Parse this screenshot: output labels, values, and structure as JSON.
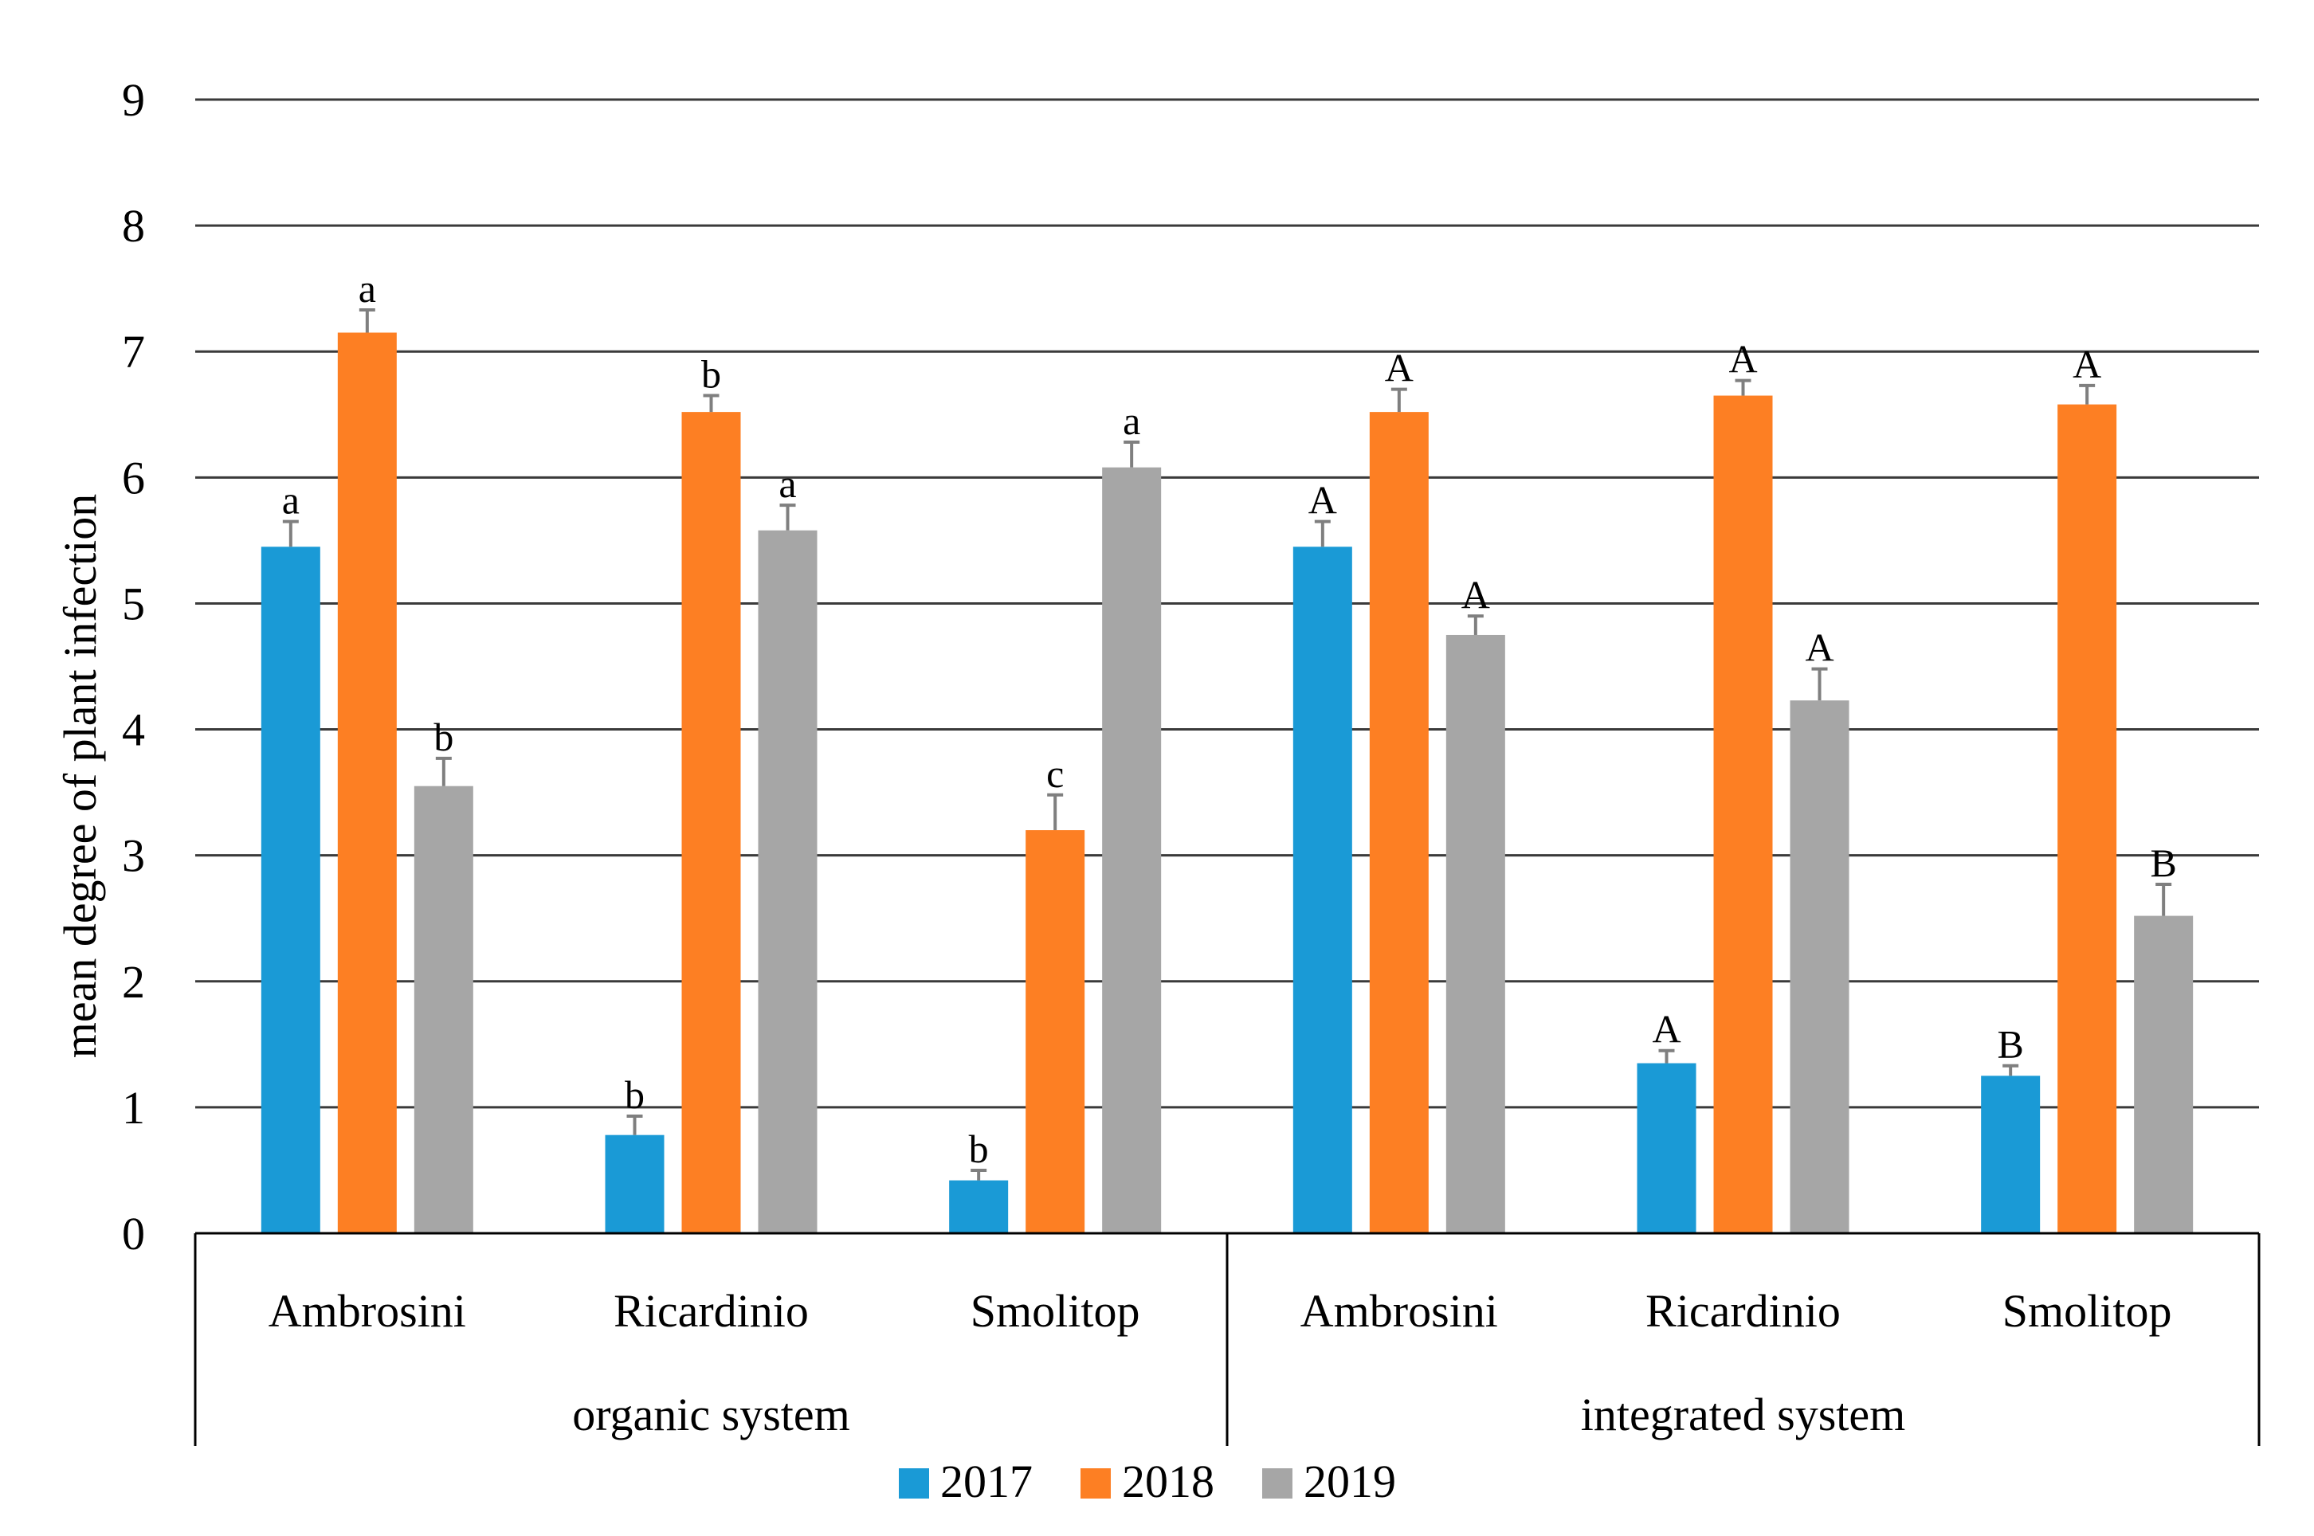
{
  "chart_data": {
    "type": "bar",
    "title": "",
    "xlabel": "",
    "ylabel": "mean degree of plant infection",
    "ylim": [
      0,
      9
    ],
    "yticks": [
      0,
      1,
      2,
      3,
      4,
      5,
      6,
      7,
      8,
      9
    ],
    "grid": true,
    "legend_position": "bottom",
    "groups": [
      {
        "name": "organic system",
        "categories": [
          "Ambrosini",
          "Ricardinio",
          "Smolitop"
        ]
      },
      {
        "name": "integrated system",
        "categories": [
          "Ambrosini",
          "Ricardinio",
          "Smolitop"
        ]
      }
    ],
    "categories": [
      "Ambrosini",
      "Ricardinio",
      "Smolitop",
      "Ambrosini",
      "Ricardinio",
      "Smolitop"
    ],
    "series": [
      {
        "name": "2017",
        "color": "#1a9ad6",
        "values": [
          5.45,
          0.78,
          0.42,
          5.45,
          1.35,
          1.25
        ],
        "errors": [
          0.2,
          0.15,
          0.08,
          0.2,
          0.1,
          0.08
        ],
        "letters": [
          "a",
          "b",
          "b",
          "A",
          "A",
          "B"
        ]
      },
      {
        "name": "2018",
        "color": "#fd7f23",
        "values": [
          7.15,
          6.52,
          3.2,
          6.52,
          6.65,
          6.58
        ],
        "errors": [
          0.18,
          0.13,
          0.28,
          0.18,
          0.12,
          0.15
        ],
        "letters": [
          "a",
          "b",
          "c",
          "A",
          "A",
          "A"
        ]
      },
      {
        "name": "2019",
        "color": "#a6a6a6",
        "values": [
          3.55,
          5.58,
          6.08,
          4.75,
          4.23,
          2.52
        ],
        "errors": [
          0.22,
          0.2,
          0.2,
          0.15,
          0.25,
          0.25
        ],
        "letters": [
          "b",
          "a",
          "a",
          "A",
          "A",
          "B"
        ]
      }
    ]
  }
}
